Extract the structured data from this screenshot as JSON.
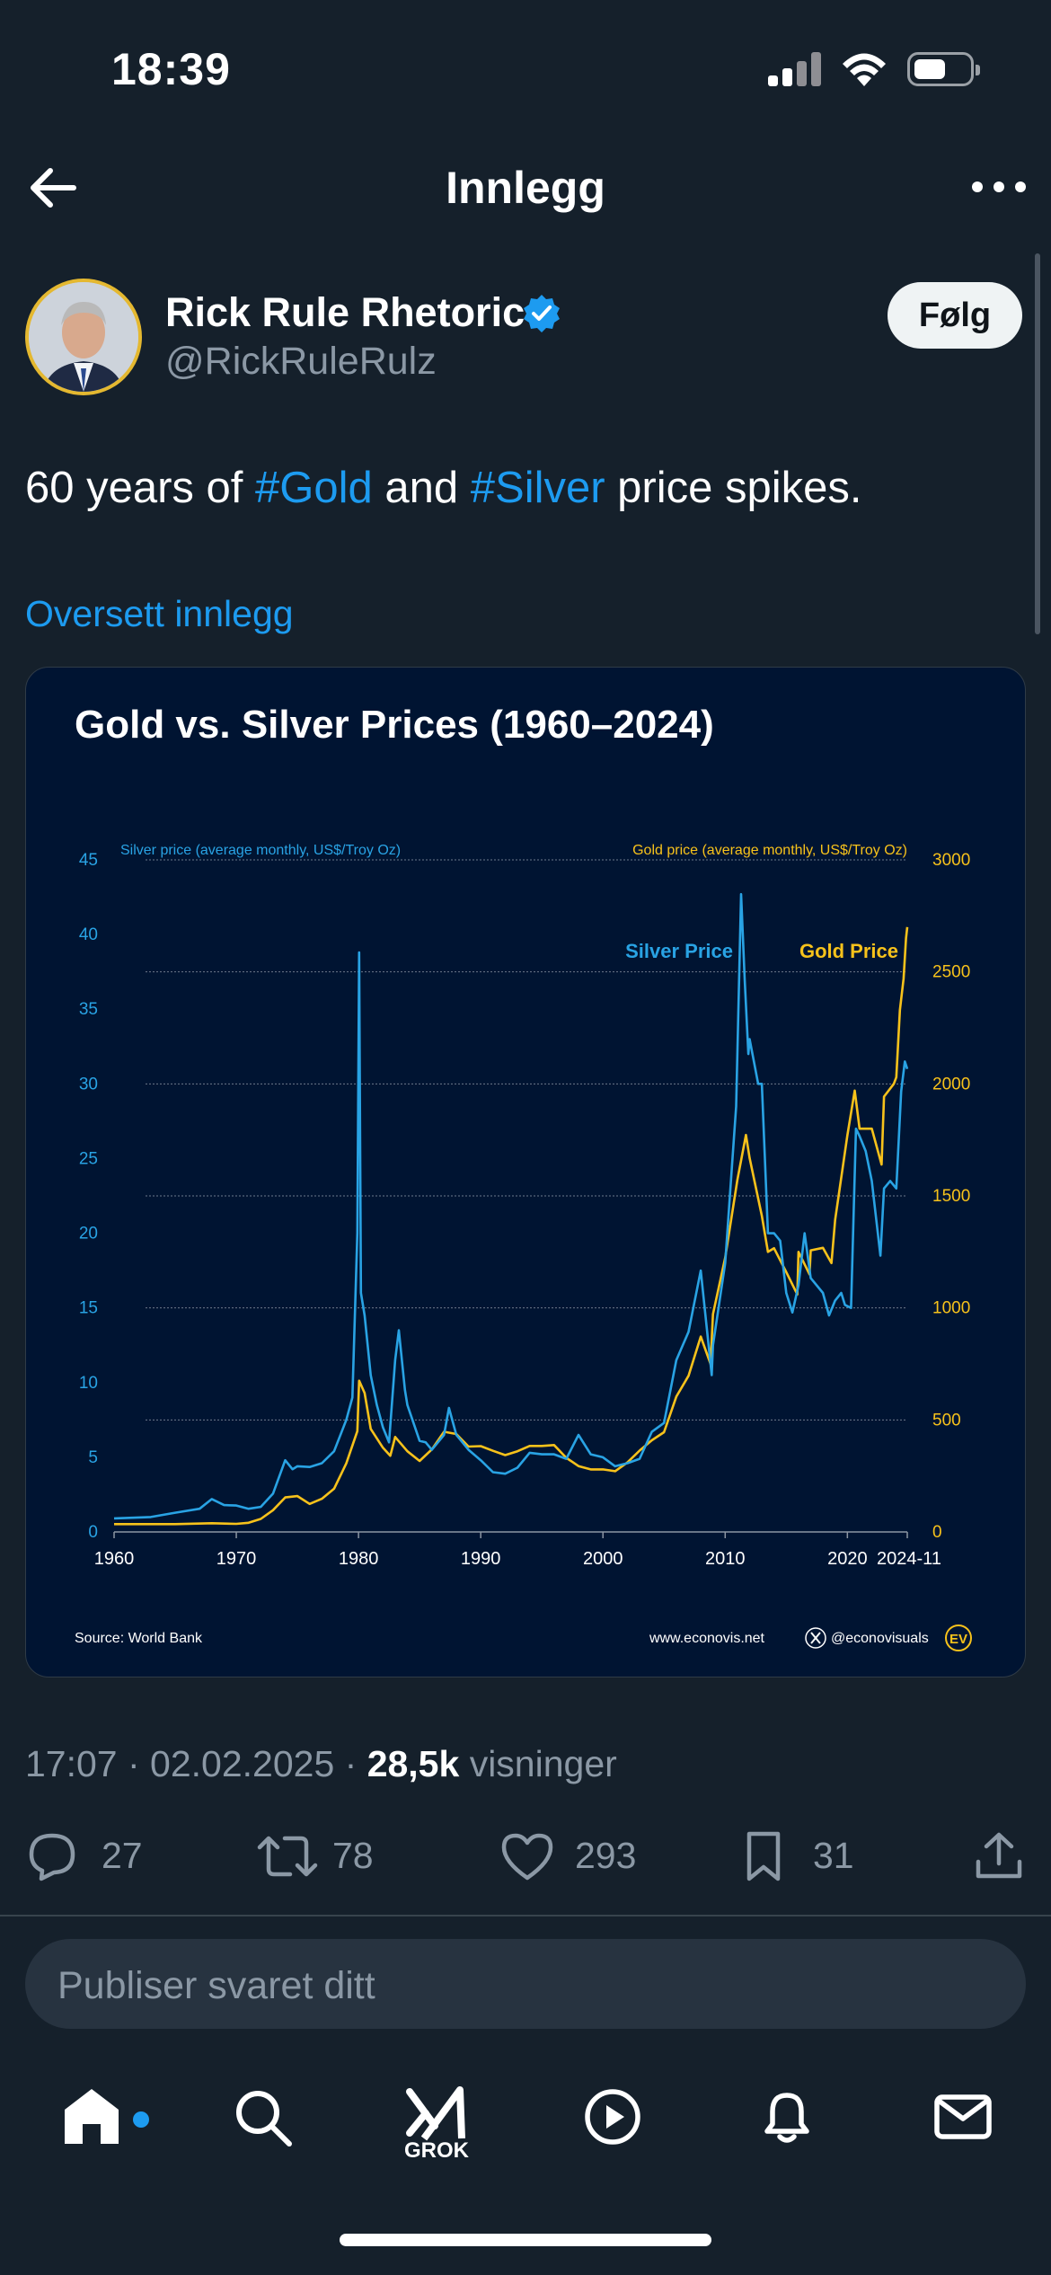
{
  "status_bar": {
    "time": "18:39",
    "icons": [
      "cellular-signal-icon",
      "wifi-icon",
      "battery-icon"
    ]
  },
  "header": {
    "title": "Innlegg",
    "back_icon": "arrow-left-icon",
    "more_icon": "more-horizontal-icon"
  },
  "author": {
    "name": "Rick Rule Rhetoric",
    "handle": "@RickRuleRulz",
    "verified": true,
    "follow_label": "Følg"
  },
  "post": {
    "text_parts": [
      {
        "text": "60 years of ",
        "hashtag": false
      },
      {
        "text": "#Gold",
        "hashtag": true
      },
      {
        "text": " and ",
        "hashtag": false
      },
      {
        "text": "#Silver",
        "hashtag": true
      },
      {
        "text": " price spikes.",
        "hashtag": false
      }
    ],
    "translate_label": "Oversett innlegg",
    "time": "17:07",
    "date": "02.02.2025",
    "views_count": "28,5k",
    "views_label": "visninger"
  },
  "chart_image": {
    "title": "Gold vs. Silver Prices (1960–2024)",
    "left_axis_label": "Silver price (average monthly, US$/Troy Oz)",
    "right_axis_label": "Gold price (average monthly, US$/Troy Oz)",
    "series_labels": {
      "silver": "Silver Price",
      "gold": "Gold Price"
    },
    "source": "Source: World Bank",
    "website": "www.econovis.net",
    "x_handle": "@econovisuals",
    "brand_mark": "EV",
    "colors": {
      "silver": "#29a3e4",
      "gold": "#f7c21b",
      "background": "#001432"
    }
  },
  "chart_data": {
    "type": "line",
    "title": "Gold vs. Silver Prices (1960–2024)",
    "x_ticks": [
      "1960",
      "1970",
      "1980",
      "1990",
      "2000",
      "2010",
      "2020",
      "2024-11"
    ],
    "y_left": {
      "label": "Silver price (average monthly, US$/Troy Oz)",
      "ticks": [
        0,
        5,
        10,
        15,
        20,
        25,
        30,
        35,
        40,
        45
      ],
      "range": [
        0,
        45
      ]
    },
    "y_right": {
      "label": "Gold price (average monthly, US$/Troy Oz)",
      "ticks": [
        0,
        500,
        1000,
        1500,
        2000,
        2500,
        3000
      ],
      "range": [
        0,
        3000
      ]
    },
    "x_range": [
      1960,
      2024.9
    ],
    "series": [
      {
        "name": "Silver Price",
        "axis": "left",
        "points": [
          [
            1960,
            0.91
          ],
          [
            1963,
            1.0
          ],
          [
            1965,
            1.29
          ],
          [
            1967,
            1.55
          ],
          [
            1968,
            2.2
          ],
          [
            1969,
            1.8
          ],
          [
            1970,
            1.77
          ],
          [
            1971,
            1.55
          ],
          [
            1972,
            1.68
          ],
          [
            1973,
            2.56
          ],
          [
            1974,
            4.8
          ],
          [
            1974.6,
            4.2
          ],
          [
            1975,
            4.4
          ],
          [
            1976,
            4.35
          ],
          [
            1977,
            4.6
          ],
          [
            1978,
            5.4
          ],
          [
            1979,
            7.5
          ],
          [
            1979.5,
            9.0
          ],
          [
            1979.9,
            20.0
          ],
          [
            1980.05,
            38.8
          ],
          [
            1980.2,
            16.0
          ],
          [
            1980.5,
            14.5
          ],
          [
            1981,
            10.5
          ],
          [
            1981.5,
            8.5
          ],
          [
            1982,
            7.0
          ],
          [
            1982.5,
            6.0
          ],
          [
            1983,
            11.5
          ],
          [
            1983.3,
            13.5
          ],
          [
            1983.8,
            9.5
          ],
          [
            1984,
            8.5
          ],
          [
            1985,
            6.1
          ],
          [
            1985.5,
            6.0
          ],
          [
            1986,
            5.5
          ],
          [
            1987,
            6.5
          ],
          [
            1987.4,
            8.3
          ],
          [
            1988,
            6.5
          ],
          [
            1989,
            5.5
          ],
          [
            1990,
            4.8
          ],
          [
            1991,
            4.0
          ],
          [
            1992,
            3.9
          ],
          [
            1993,
            4.3
          ],
          [
            1994,
            5.3
          ],
          [
            1995,
            5.2
          ],
          [
            1996,
            5.2
          ],
          [
            1997,
            4.9
          ],
          [
            1998,
            6.5
          ],
          [
            1999,
            5.2
          ],
          [
            2000,
            5.0
          ],
          [
            2001,
            4.4
          ],
          [
            2002,
            4.6
          ],
          [
            2003,
            4.9
          ],
          [
            2004,
            6.7
          ],
          [
            2005,
            7.3
          ],
          [
            2006,
            11.5
          ],
          [
            2007,
            13.4
          ],
          [
            2008,
            17.5
          ],
          [
            2008.9,
            10.5
          ],
          [
            2009,
            12.5
          ],
          [
            2010,
            18.0
          ],
          [
            2010.9,
            28.5
          ],
          [
            2011.3,
            42.7
          ],
          [
            2011.6,
            37.0
          ],
          [
            2011.9,
            32.0
          ],
          [
            2012,
            33.0
          ],
          [
            2012.7,
            30.0
          ],
          [
            2013,
            30.0
          ],
          [
            2013.5,
            20.0
          ],
          [
            2014,
            20.0
          ],
          [
            2014.5,
            19.5
          ],
          [
            2015,
            16.0
          ],
          [
            2015.5,
            14.7
          ],
          [
            2016,
            16.5
          ],
          [
            2016.5,
            20.0
          ],
          [
            2017,
            17.0
          ],
          [
            2018,
            16.0
          ],
          [
            2018.5,
            14.5
          ],
          [
            2019,
            15.5
          ],
          [
            2019.5,
            16.0
          ],
          [
            2019.8,
            15.2
          ],
          [
            2020.3,
            15.0
          ],
          [
            2020.7,
            27.0
          ],
          [
            2021,
            26.5
          ],
          [
            2021.5,
            25.5
          ],
          [
            2022,
            23.5
          ],
          [
            2022.7,
            18.5
          ],
          [
            2023,
            23.0
          ],
          [
            2023.5,
            23.5
          ],
          [
            2024,
            23.0
          ],
          [
            2024.4,
            29.5
          ],
          [
            2024.7,
            31.5
          ],
          [
            2024.9,
            31.0
          ]
        ]
      },
      {
        "name": "Gold Price",
        "axis": "right",
        "points": [
          [
            1960,
            35
          ],
          [
            1965,
            35
          ],
          [
            1968,
            39
          ],
          [
            1970,
            36
          ],
          [
            1971,
            41
          ],
          [
            1972,
            58
          ],
          [
            1973,
            97
          ],
          [
            1974,
            154
          ],
          [
            1975,
            160
          ],
          [
            1976,
            125
          ],
          [
            1977,
            148
          ],
          [
            1978,
            193
          ],
          [
            1979,
            306
          ],
          [
            1979.9,
            450
          ],
          [
            1980.05,
            675
          ],
          [
            1980.5,
            620
          ],
          [
            1981,
            460
          ],
          [
            1982,
            376
          ],
          [
            1982.6,
            340
          ],
          [
            1983,
            424
          ],
          [
            1984,
            360
          ],
          [
            1985,
            317
          ],
          [
            1986,
            368
          ],
          [
            1987,
            447
          ],
          [
            1988,
            437
          ],
          [
            1989,
            381
          ],
          [
            1990,
            383
          ],
          [
            1991,
            362
          ],
          [
            1992,
            343
          ],
          [
            1993,
            360
          ],
          [
            1994,
            384
          ],
          [
            1995,
            384
          ],
          [
            1996,
            388
          ],
          [
            1997,
            331
          ],
          [
            1998,
            294
          ],
          [
            1999,
            279
          ],
          [
            2000,
            279
          ],
          [
            2001,
            271
          ],
          [
            2002,
            310
          ],
          [
            2003,
            363
          ],
          [
            2004,
            409
          ],
          [
            2005,
            445
          ],
          [
            2006,
            604
          ],
          [
            2007,
            697
          ],
          [
            2008,
            872
          ],
          [
            2008.8,
            750
          ],
          [
            2009,
            972
          ],
          [
            2010,
            1224
          ],
          [
            2011,
            1572
          ],
          [
            2011.7,
            1772
          ],
          [
            2012,
            1669
          ],
          [
            2013,
            1411
          ],
          [
            2013.5,
            1250
          ],
          [
            2014,
            1266
          ],
          [
            2015,
            1160
          ],
          [
            2015.9,
            1060
          ],
          [
            2016,
            1250
          ],
          [
            2016.9,
            1150
          ],
          [
            2017,
            1257
          ],
          [
            2018,
            1268
          ],
          [
            2018.7,
            1200
          ],
          [
            2019,
            1393
          ],
          [
            2020,
            1770
          ],
          [
            2020.6,
            1970
          ],
          [
            2021,
            1800
          ],
          [
            2022,
            1800
          ],
          [
            2022.8,
            1640
          ],
          [
            2023,
            1943
          ],
          [
            2023.8,
            2000
          ],
          [
            2024,
            2030
          ],
          [
            2024.3,
            2330
          ],
          [
            2024.6,
            2470
          ],
          [
            2024.8,
            2650
          ],
          [
            2024.9,
            2700
          ]
        ]
      }
    ]
  },
  "actions": {
    "reply_count": "27",
    "repost_count": "78",
    "like_count": "293",
    "bookmark_count": "31",
    "icons": [
      "reply-icon",
      "repost-icon",
      "like-icon",
      "bookmark-icon",
      "share-icon"
    ]
  },
  "reply": {
    "placeholder": "Publiser svaret ditt"
  },
  "tab_bar": {
    "grok_label": "GROK",
    "icons": [
      "home-icon",
      "search-icon",
      "grok-icon",
      "video-icon",
      "notifications-icon",
      "messages-icon"
    ]
  }
}
